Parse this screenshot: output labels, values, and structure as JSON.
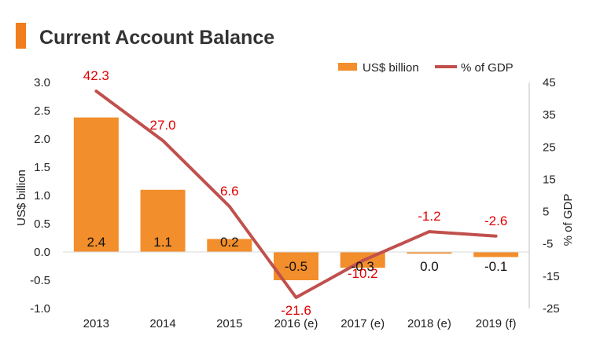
{
  "chart_data": {
    "type": "bar",
    "title": "Current Account Balance",
    "categories": [
      "2013",
      "2014",
      "2015",
      "2016 (e)",
      "2017 (e)",
      "2018 (e)",
      "2019 (f)"
    ],
    "series": [
      {
        "name": "US$ billion",
        "type": "bar",
        "axis": "left",
        "values": [
          2.38,
          1.1,
          0.23,
          -0.5,
          -0.28,
          -0.03,
          -0.09
        ],
        "labels": [
          "2.4",
          "1.1",
          "0.2",
          "-0.5",
          "-0.3",
          "0.0",
          "-0.1"
        ]
      },
      {
        "name": "% of GDP",
        "type": "line",
        "axis": "right",
        "values": [
          42.3,
          27.0,
          6.6,
          -21.6,
          -10.2,
          -1.2,
          -2.6
        ],
        "labels": [
          "42.3",
          "27.0",
          "6.6",
          "-21.6",
          "-10.2",
          "-1.2",
          "-2.6"
        ]
      }
    ],
    "ylabel": "US$ billion",
    "y2label": "% of GDP",
    "ylim": [
      -1.0,
      3.0
    ],
    "y2lim": [
      -25,
      45
    ],
    "yticks": [
      "3.0",
      "2.5",
      "2.0",
      "1.5",
      "1.0",
      "0.5",
      "0.0",
      "-0.5",
      "-1.0"
    ],
    "y2ticks": [
      "45",
      "35",
      "25",
      "15",
      "5",
      "-5",
      "-15",
      "-25"
    ],
    "grid": false,
    "legend": "top-right",
    "colors": {
      "bar": "#f28e2b",
      "line": "#c0504d",
      "line_label": "#e00000",
      "accent": "#f07d1e"
    }
  }
}
